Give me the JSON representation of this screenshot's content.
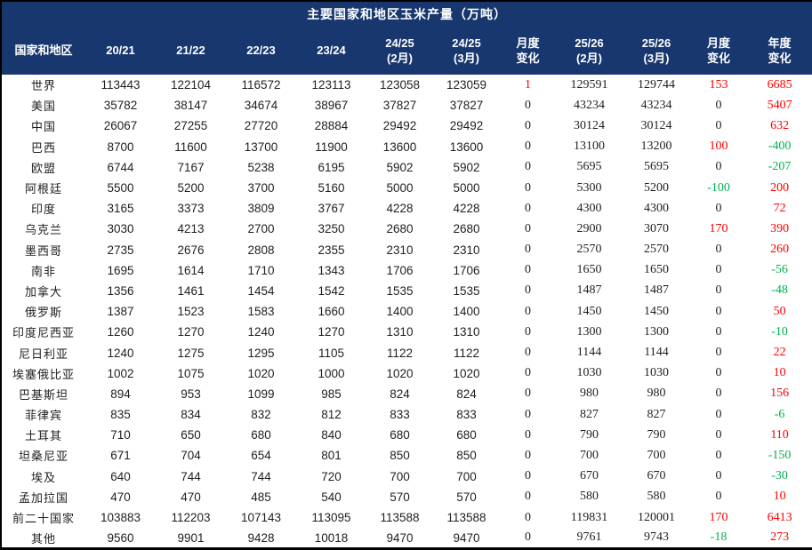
{
  "colors": {
    "header_bg": "#17376e",
    "header_text": "#ffffff",
    "positive_change": "#fe0000",
    "negative_change": "#00b050",
    "body_text": "#1f1f1f",
    "border": "#000000"
  },
  "chart_data": {
    "type": "table",
    "title": "主要国家和地区玉米产量（万吨）",
    "columns": [
      {
        "label": "国家和地区"
      },
      {
        "label": "20/21"
      },
      {
        "label": "21/22"
      },
      {
        "label": "22/23"
      },
      {
        "label": "23/24"
      },
      {
        "label": "24/25",
        "sub": "(2月)"
      },
      {
        "label": "24/25",
        "sub": "(3月)"
      },
      {
        "label": "月度",
        "sub": "变化"
      },
      {
        "label": "25/26",
        "sub": "(2月)"
      },
      {
        "label": "25/26",
        "sub": "(3月)"
      },
      {
        "label": "月度",
        "sub": "变化"
      },
      {
        "label": "年度",
        "sub": "变化"
      }
    ],
    "rows": [
      {
        "name": "世界",
        "values": [
          113443,
          122104,
          116572,
          123113,
          123058,
          123059,
          1,
          129591,
          129744,
          153,
          6685
        ]
      },
      {
        "name": "美国",
        "values": [
          35782,
          38147,
          34674,
          38967,
          37827,
          37827,
          0,
          43234,
          43234,
          0,
          5407
        ]
      },
      {
        "name": "中国",
        "values": [
          26067,
          27255,
          27720,
          28884,
          29492,
          29492,
          0,
          30124,
          30124,
          0,
          632
        ]
      },
      {
        "name": "巴西",
        "values": [
          8700,
          11600,
          13700,
          11900,
          13600,
          13600,
          0,
          13100,
          13200,
          100,
          -400
        ]
      },
      {
        "name": "欧盟",
        "values": [
          6744,
          7167,
          5238,
          6195,
          5902,
          5902,
          0,
          5695,
          5695,
          0,
          -207
        ]
      },
      {
        "name": "阿根廷",
        "values": [
          5500,
          5200,
          3700,
          5160,
          5000,
          5000,
          0,
          5300,
          5200,
          -100,
          200
        ]
      },
      {
        "name": "印度",
        "values": [
          3165,
          3373,
          3809,
          3767,
          4228,
          4228,
          0,
          4300,
          4300,
          0,
          72
        ]
      },
      {
        "name": "乌克兰",
        "values": [
          3030,
          4213,
          2700,
          3250,
          2680,
          2680,
          0,
          2900,
          3070,
          170,
          390
        ]
      },
      {
        "name": "墨西哥",
        "values": [
          2735,
          2676,
          2808,
          2355,
          2310,
          2310,
          0,
          2570,
          2570,
          0,
          260
        ]
      },
      {
        "name": "南非",
        "values": [
          1695,
          1614,
          1710,
          1343,
          1706,
          1706,
          0,
          1650,
          1650,
          0,
          -56
        ]
      },
      {
        "name": "加拿大",
        "values": [
          1356,
          1461,
          1454,
          1542,
          1535,
          1535,
          0,
          1487,
          1487,
          0,
          -48
        ]
      },
      {
        "name": "俄罗斯",
        "values": [
          1387,
          1523,
          1583,
          1660,
          1400,
          1400,
          0,
          1450,
          1450,
          0,
          50
        ]
      },
      {
        "name": "印度尼西亚",
        "values": [
          1260,
          1270,
          1240,
          1270,
          1310,
          1310,
          0,
          1300,
          1300,
          0,
          -10
        ]
      },
      {
        "name": "尼日利亚",
        "values": [
          1240,
          1275,
          1295,
          1105,
          1122,
          1122,
          0,
          1144,
          1144,
          0,
          22
        ]
      },
      {
        "name": "埃塞俄比亚",
        "values": [
          1002,
          1075,
          1020,
          1000,
          1020,
          1020,
          0,
          1030,
          1030,
          0,
          10
        ]
      },
      {
        "name": "巴基斯坦",
        "values": [
          894,
          953,
          1099,
          985,
          824,
          824,
          0,
          980,
          980,
          0,
          156
        ]
      },
      {
        "name": "菲律宾",
        "values": [
          835,
          834,
          832,
          812,
          833,
          833,
          0,
          827,
          827,
          0,
          -6
        ]
      },
      {
        "name": "土耳其",
        "values": [
          710,
          650,
          680,
          840,
          680,
          680,
          0,
          790,
          790,
          0,
          110
        ]
      },
      {
        "name": "坦桑尼亚",
        "values": [
          671,
          704,
          654,
          801,
          850,
          850,
          0,
          700,
          700,
          0,
          -150
        ]
      },
      {
        "name": "埃及",
        "values": [
          640,
          744,
          744,
          720,
          700,
          700,
          0,
          670,
          670,
          0,
          -30
        ]
      },
      {
        "name": "孟加拉国",
        "values": [
          470,
          470,
          485,
          540,
          570,
          570,
          0,
          580,
          580,
          0,
          10
        ]
      },
      {
        "name": "前二十国家",
        "values": [
          103883,
          112203,
          107143,
          113095,
          113588,
          113588,
          0,
          119831,
          120001,
          170,
          6413
        ]
      },
      {
        "name": "其他",
        "values": [
          9560,
          9901,
          9428,
          10018,
          9470,
          9470,
          0,
          9761,
          9743,
          -18,
          273
        ]
      }
    ]
  }
}
